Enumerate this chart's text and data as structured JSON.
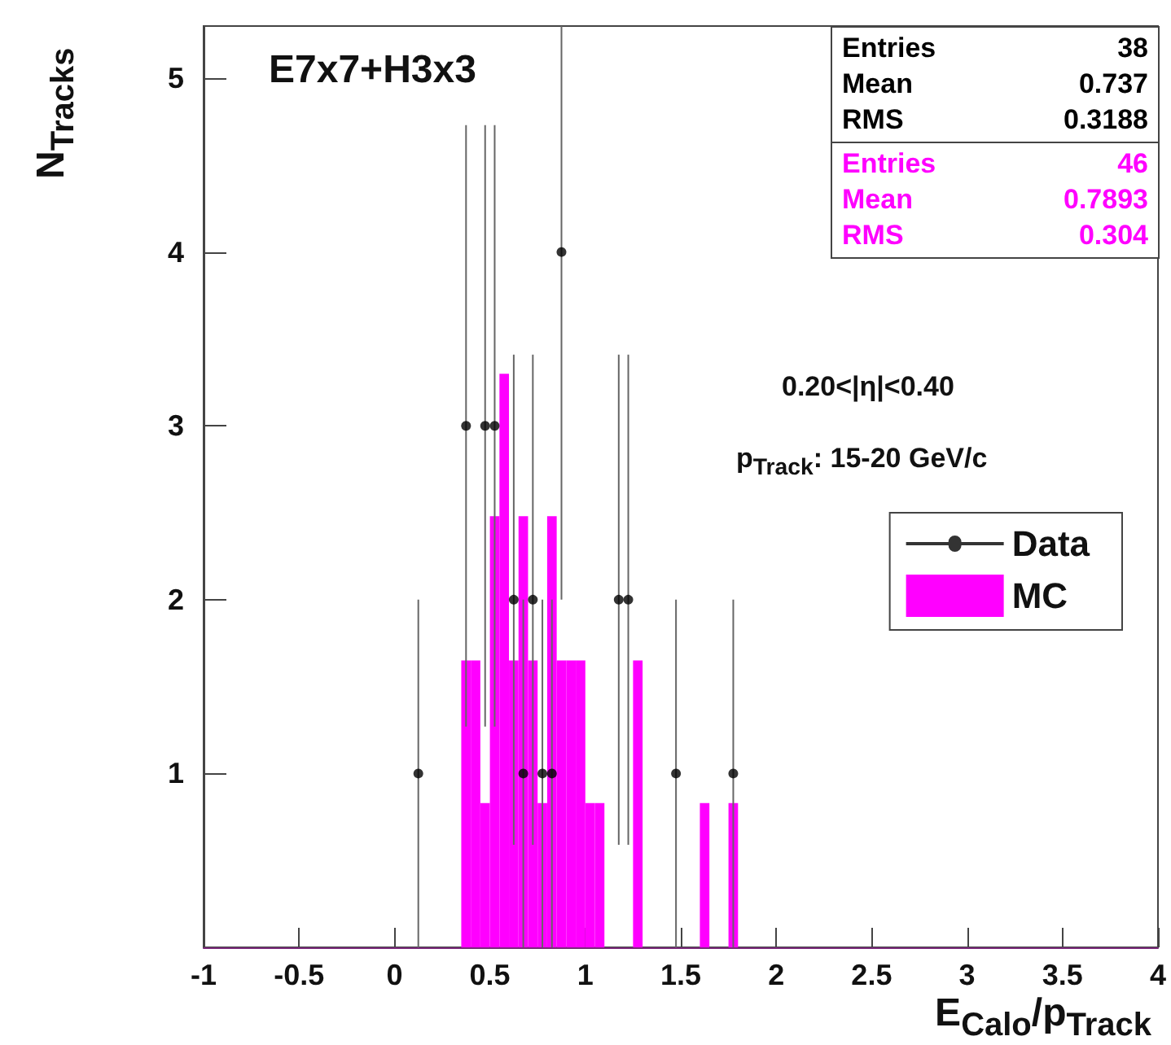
{
  "chart_data": {
    "type": "histogram",
    "title": "E7x7+H3x3",
    "xlabel": "E$_{Calo}$/p$_{Track}$",
    "ylabel": "N$_{Tracks}$",
    "annotations": [
      "0.20<|η|<0.40",
      "p$_{Track}$: 15-20 GeV/c",
      "Entries",
      "38",
      "Mean",
      "0.737",
      "RMS",
      "0.3188",
      "Entries",
      "46",
      "Mean",
      "0.7893",
      "RMS",
      "0.304"
    ],
    "bins": [
      0.35,
      0.4,
      0.45,
      0.5,
      0.55,
      0.6,
      0.65,
      0.7,
      0.75,
      0.8,
      0.85,
      0.9,
      0.95,
      1.0,
      1.05,
      1.1,
      1.15,
      1.2,
      1.25,
      1.3,
      1.35,
      1.4,
      1.45,
      1.5,
      1.55,
      1.6,
      1.65,
      1.7,
      1.75,
      1.8
    ],
    "series": [
      {
        "name": "Data",
        "type": "scatter",
        "color": "#000000",
        "x": [
          0.125,
          0.375,
          0.475,
          0.525,
          0.625,
          0.675,
          0.725,
          0.775,
          0.825,
          0.875,
          1.175,
          1.225,
          1.475,
          1.775
        ],
        "values": [
          1,
          3,
          3,
          3,
          2,
          1,
          2,
          1,
          1,
          4,
          2,
          2,
          1,
          1
        ],
        "errors": [
          [
            0,
            2
          ],
          [
            1.27,
            4.73
          ],
          [
            1.27,
            4.73
          ],
          [
            1.27,
            4.73
          ],
          [
            0.59,
            3.41
          ],
          [
            0,
            2
          ],
          [
            0.59,
            3.41
          ],
          [
            0,
            2
          ],
          [
            0,
            2
          ],
          [
            2,
            5.3
          ],
          [
            0.59,
            3.41
          ],
          [
            0.59,
            3.41
          ],
          [
            0,
            2
          ],
          [
            0,
            2
          ]
        ]
      },
      {
        "name": "MC",
        "color": "#ff00ff",
        "values": [
          1.65,
          1.65,
          0.83,
          2.48,
          3.3,
          1.65,
          2.48,
          1.65,
          0.83,
          2.48,
          1.65,
          1.65,
          1.65,
          0.83,
          0.83,
          0,
          0,
          0,
          1.65,
          0,
          0,
          0,
          0,
          0,
          0,
          0.83,
          0,
          0,
          0.83
        ]
      }
    ],
    "xlim": [
      -1,
      4
    ],
    "xticks": [
      -1,
      -0.5,
      0,
      0.5,
      1,
      1.5,
      2,
      2.5,
      3,
      3.5,
      4
    ],
    "ylim": [
      0,
      5.3
    ],
    "yticks": [
      1,
      2,
      3,
      4,
      5
    ],
    "marker": "circle",
    "legend": "right",
    "grid": false
  }
}
